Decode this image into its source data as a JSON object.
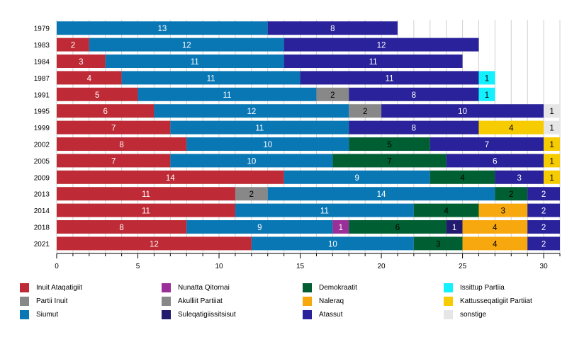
{
  "chart_data": {
    "type": "bar",
    "orientation": "horizontal",
    "stacked": true,
    "title": "",
    "xlabel": "",
    "ylabel": "",
    "xlim": [
      0,
      31
    ],
    "x_ticks": [
      0,
      5,
      10,
      15,
      20,
      25,
      30
    ],
    "grid": true,
    "legend_position": "bottom",
    "categories": [
      "1979",
      "1983",
      "1984",
      "1987",
      "1991",
      "1995",
      "1999",
      "2002",
      "2005",
      "2009",
      "2013",
      "2014",
      "2018",
      "2021"
    ],
    "parties": [
      {
        "name": "Inuit Ataqatigiit",
        "color": "#be2a35"
      },
      {
        "name": "Partii Inuit",
        "color": "#888888"
      },
      {
        "name": "Siumut",
        "color": "#0a77b5"
      },
      {
        "name": "Nunatta Qitornai",
        "color": "#9b2f9a"
      },
      {
        "name": "Akulliit Partiiat",
        "color": "#888888"
      },
      {
        "name": "Suleqatigiissitsisut",
        "color": "#221a6e"
      },
      {
        "name": "Demokraatit",
        "color": "#005f32"
      },
      {
        "name": "Naleraq",
        "color": "#f8a80f"
      },
      {
        "name": "Atassut",
        "color": "#2a229a"
      },
      {
        "name": "Issittup Partiia",
        "color": "#13f0ff"
      },
      {
        "name": "Kattusseqatigiit Partiiat",
        "color": "#f6cc00"
      },
      {
        "name": "sonstige",
        "color": "#e6e6e6"
      }
    ],
    "rows": [
      {
        "year": "1979",
        "segments": [
          {
            "party": "Siumut",
            "value": 13
          },
          {
            "party": "Atassut",
            "value": 8
          }
        ]
      },
      {
        "year": "1983",
        "segments": [
          {
            "party": "Inuit Ataqatigiit",
            "value": 2
          },
          {
            "party": "Siumut",
            "value": 12
          },
          {
            "party": "Atassut",
            "value": 12
          }
        ]
      },
      {
        "year": "1984",
        "segments": [
          {
            "party": "Inuit Ataqatigiit",
            "value": 3
          },
          {
            "party": "Siumut",
            "value": 11
          },
          {
            "party": "Atassut",
            "value": 11
          }
        ]
      },
      {
        "year": "1987",
        "segments": [
          {
            "party": "Inuit Ataqatigiit",
            "value": 4
          },
          {
            "party": "Siumut",
            "value": 11
          },
          {
            "party": "Atassut",
            "value": 11
          },
          {
            "party": "Issittup Partiia",
            "value": 1
          }
        ]
      },
      {
        "year": "1991",
        "segments": [
          {
            "party": "Inuit Ataqatigiit",
            "value": 5
          },
          {
            "party": "Siumut",
            "value": 11
          },
          {
            "party": "Akulliit Partiiat",
            "value": 2
          },
          {
            "party": "Atassut",
            "value": 8
          },
          {
            "party": "Issittup Partiia",
            "value": 1
          }
        ]
      },
      {
        "year": "1995",
        "segments": [
          {
            "party": "Inuit Ataqatigiit",
            "value": 6
          },
          {
            "party": "Siumut",
            "value": 12
          },
          {
            "party": "Akulliit Partiiat",
            "value": 2
          },
          {
            "party": "Atassut",
            "value": 10
          },
          {
            "party": "sonstige",
            "value": 1
          }
        ]
      },
      {
        "year": "1999",
        "segments": [
          {
            "party": "Inuit Ataqatigiit",
            "value": 7
          },
          {
            "party": "Siumut",
            "value": 11
          },
          {
            "party": "Atassut",
            "value": 8
          },
          {
            "party": "Kattusseqatigiit Partiiat",
            "value": 4
          },
          {
            "party": "sonstige",
            "value": 1
          }
        ]
      },
      {
        "year": "2002",
        "segments": [
          {
            "party": "Inuit Ataqatigiit",
            "value": 8
          },
          {
            "party": "Siumut",
            "value": 10
          },
          {
            "party": "Demokraatit",
            "value": 5
          },
          {
            "party": "Atassut",
            "value": 7
          },
          {
            "party": "Kattusseqatigiit Partiiat",
            "value": 1
          }
        ]
      },
      {
        "year": "2005",
        "segments": [
          {
            "party": "Inuit Ataqatigiit",
            "value": 7
          },
          {
            "party": "Siumut",
            "value": 10
          },
          {
            "party": "Demokraatit",
            "value": 7
          },
          {
            "party": "Atassut",
            "value": 6
          },
          {
            "party": "Kattusseqatigiit Partiiat",
            "value": 1
          }
        ]
      },
      {
        "year": "2009",
        "segments": [
          {
            "party": "Inuit Ataqatigiit",
            "value": 14
          },
          {
            "party": "Siumut",
            "value": 9
          },
          {
            "party": "Demokraatit",
            "value": 4
          },
          {
            "party": "Atassut",
            "value": 3
          },
          {
            "party": "Kattusseqatigiit Partiiat",
            "value": 1
          }
        ]
      },
      {
        "year": "2013",
        "segments": [
          {
            "party": "Inuit Ataqatigiit",
            "value": 11
          },
          {
            "party": "Partii Inuit",
            "value": 2
          },
          {
            "party": "Siumut",
            "value": 14
          },
          {
            "party": "Demokraatit",
            "value": 2
          },
          {
            "party": "Atassut",
            "value": 2
          }
        ]
      },
      {
        "year": "2014",
        "segments": [
          {
            "party": "Inuit Ataqatigiit",
            "value": 11
          },
          {
            "party": "Siumut",
            "value": 11
          },
          {
            "party": "Demokraatit",
            "value": 4
          },
          {
            "party": "Naleraq",
            "value": 3
          },
          {
            "party": "Atassut",
            "value": 2
          }
        ]
      },
      {
        "year": "2018",
        "segments": [
          {
            "party": "Inuit Ataqatigiit",
            "value": 8
          },
          {
            "party": "Siumut",
            "value": 9
          },
          {
            "party": "Nunatta Qitornai",
            "value": 1
          },
          {
            "party": "Demokraatit",
            "value": 6
          },
          {
            "party": "Suleqatigiissitsisut",
            "value": 1
          },
          {
            "party": "Naleraq",
            "value": 4
          },
          {
            "party": "Atassut",
            "value": 2
          }
        ]
      },
      {
        "year": "2021",
        "segments": [
          {
            "party": "Inuit Ataqatigiit",
            "value": 12
          },
          {
            "party": "Siumut",
            "value": 10
          },
          {
            "party": "Demokraatit",
            "value": 3
          },
          {
            "party": "Naleraq",
            "value": 4
          },
          {
            "party": "Atassut",
            "value": 2
          }
        ]
      }
    ]
  }
}
